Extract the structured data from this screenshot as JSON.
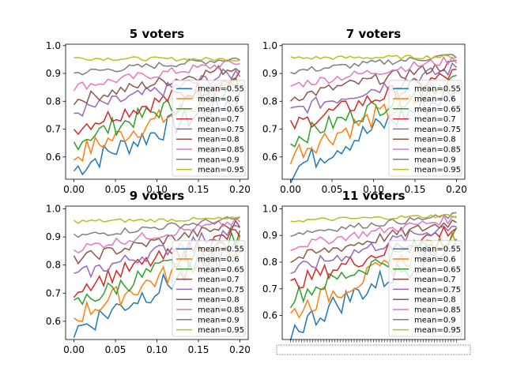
{
  "chart_data": [
    {
      "type": "line",
      "title": "5 voters",
      "xlim": [
        -0.01,
        0.21
      ],
      "ylim": [
        0.52,
        1.005
      ],
      "xticks": [
        "0.00",
        "0.05",
        "0.10",
        "0.15",
        "0.20"
      ],
      "yticks": [
        "0.6",
        "0.7",
        "0.8",
        "0.9",
        "1.0"
      ],
      "legend_position": "lower right",
      "grid": false,
      "series": [
        {
          "name": "mean=0.55",
          "color": "#1f77b4",
          "start": 0.55,
          "end": 0.815
        },
        {
          "name": "mean=0.6",
          "color": "#ff7f0e",
          "start": 0.6,
          "end": 0.845
        },
        {
          "name": "mean=0.65",
          "color": "#2ca02c",
          "start": 0.65,
          "end": 0.865
        },
        {
          "name": "mean=0.7",
          "color": "#d62728",
          "start": 0.7,
          "end": 0.885
        },
        {
          "name": "mean=0.75",
          "color": "#9467bd",
          "start": 0.755,
          "end": 0.905
        },
        {
          "name": "mean=0.8",
          "color": "#8c564b",
          "start": 0.8,
          "end": 0.925
        },
        {
          "name": "mean=0.85",
          "color": "#e377c2",
          "start": 0.85,
          "end": 0.94
        },
        {
          "name": "mean=0.9",
          "color": "#7f7f7f",
          "start": 0.9,
          "end": 0.955
        },
        {
          "name": "mean=0.95",
          "color": "#bcbd22",
          "start": 0.955,
          "end": 0.95
        }
      ]
    },
    {
      "type": "line",
      "title": "7 voters",
      "xlim": [
        -0.01,
        0.21
      ],
      "ylim": [
        0.52,
        1.005
      ],
      "xticks": [
        "0.00",
        "0.05",
        "0.10",
        "0.15",
        "0.20"
      ],
      "yticks": [
        "0.6",
        "0.7",
        "0.8",
        "0.9",
        "1.0"
      ],
      "legend_position": "lower right",
      "grid": false,
      "series": [
        {
          "name": "mean=0.55",
          "color": "#1f77b4",
          "start": 0.545,
          "end": 0.835
        },
        {
          "name": "mean=0.6",
          "color": "#ff7f0e",
          "start": 0.605,
          "end": 0.86
        },
        {
          "name": "mean=0.65",
          "color": "#2ca02c",
          "start": 0.655,
          "end": 0.88
        },
        {
          "name": "mean=0.7",
          "color": "#d62728",
          "start": 0.705,
          "end": 0.9
        },
        {
          "name": "mean=0.75",
          "color": "#9467bd",
          "start": 0.76,
          "end": 0.92
        },
        {
          "name": "mean=0.8",
          "color": "#8c564b",
          "start": 0.81,
          "end": 0.935
        },
        {
          "name": "mean=0.85",
          "color": "#e377c2",
          "start": 0.855,
          "end": 0.95
        },
        {
          "name": "mean=0.9",
          "color": "#7f7f7f",
          "start": 0.905,
          "end": 0.965
        },
        {
          "name": "mean=0.95",
          "color": "#bcbd22",
          "start": 0.955,
          "end": 0.96
        }
      ]
    },
    {
      "type": "line",
      "title": "9 voters",
      "xlim": [
        -0.01,
        0.21
      ],
      "ylim": [
        0.535,
        1.01
      ],
      "xticks": [
        "0.00",
        "0.05",
        "0.10",
        "0.15",
        "0.20"
      ],
      "yticks": [
        "0.6",
        "0.7",
        "0.8",
        "0.9",
        "1.0"
      ],
      "legend_position": "lower right",
      "grid": false,
      "series": [
        {
          "name": "mean=0.55",
          "color": "#1f77b4",
          "start": 0.56,
          "end": 0.855
        },
        {
          "name": "mean=0.6",
          "color": "#ff7f0e",
          "start": 0.61,
          "end": 0.875
        },
        {
          "name": "mean=0.65",
          "color": "#2ca02c",
          "start": 0.65,
          "end": 0.895
        },
        {
          "name": "mean=0.7",
          "color": "#d62728",
          "start": 0.71,
          "end": 0.915
        },
        {
          "name": "mean=0.75",
          "color": "#9467bd",
          "start": 0.755,
          "end": 0.93
        },
        {
          "name": "mean=0.8",
          "color": "#8c564b",
          "start": 0.815,
          "end": 0.945
        },
        {
          "name": "mean=0.85",
          "color": "#e377c2",
          "start": 0.855,
          "end": 0.955
        },
        {
          "name": "mean=0.9",
          "color": "#7f7f7f",
          "start": 0.9,
          "end": 0.965
        },
        {
          "name": "mean=0.95",
          "color": "#bcbd22",
          "start": 0.955,
          "end": 0.965
        }
      ]
    },
    {
      "type": "line",
      "title": "11 voters",
      "xlim": [
        -0.01,
        0.21
      ],
      "ylim": [
        0.51,
        1.01
      ],
      "xticks": [],
      "xtick_note": "dense overlapping tick labels",
      "yticks": [
        "0.6",
        "0.7",
        "0.8",
        "0.9",
        "1.0"
      ],
      "legend_position": "lower right",
      "grid": false,
      "series": [
        {
          "name": "mean=0.55",
          "color": "#1f77b4",
          "start": 0.535,
          "end": 0.875
        },
        {
          "name": "mean=0.6",
          "color": "#ff7f0e",
          "start": 0.6,
          "end": 0.895
        },
        {
          "name": "mean=0.65",
          "color": "#2ca02c",
          "start": 0.66,
          "end": 0.91
        },
        {
          "name": "mean=0.7",
          "color": "#d62728",
          "start": 0.71,
          "end": 0.93
        },
        {
          "name": "mean=0.75",
          "color": "#9467bd",
          "start": 0.76,
          "end": 0.945
        },
        {
          "name": "mean=0.8",
          "color": "#8c564b",
          "start": 0.805,
          "end": 0.955
        },
        {
          "name": "mean=0.85",
          "color": "#e377c2",
          "start": 0.855,
          "end": 0.965
        },
        {
          "name": "mean=0.9",
          "color": "#7f7f7f",
          "start": 0.905,
          "end": 0.975
        },
        {
          "name": "mean=0.95",
          "color": "#bcbd22",
          "start": 0.955,
          "end": 0.975
        }
      ]
    }
  ]
}
